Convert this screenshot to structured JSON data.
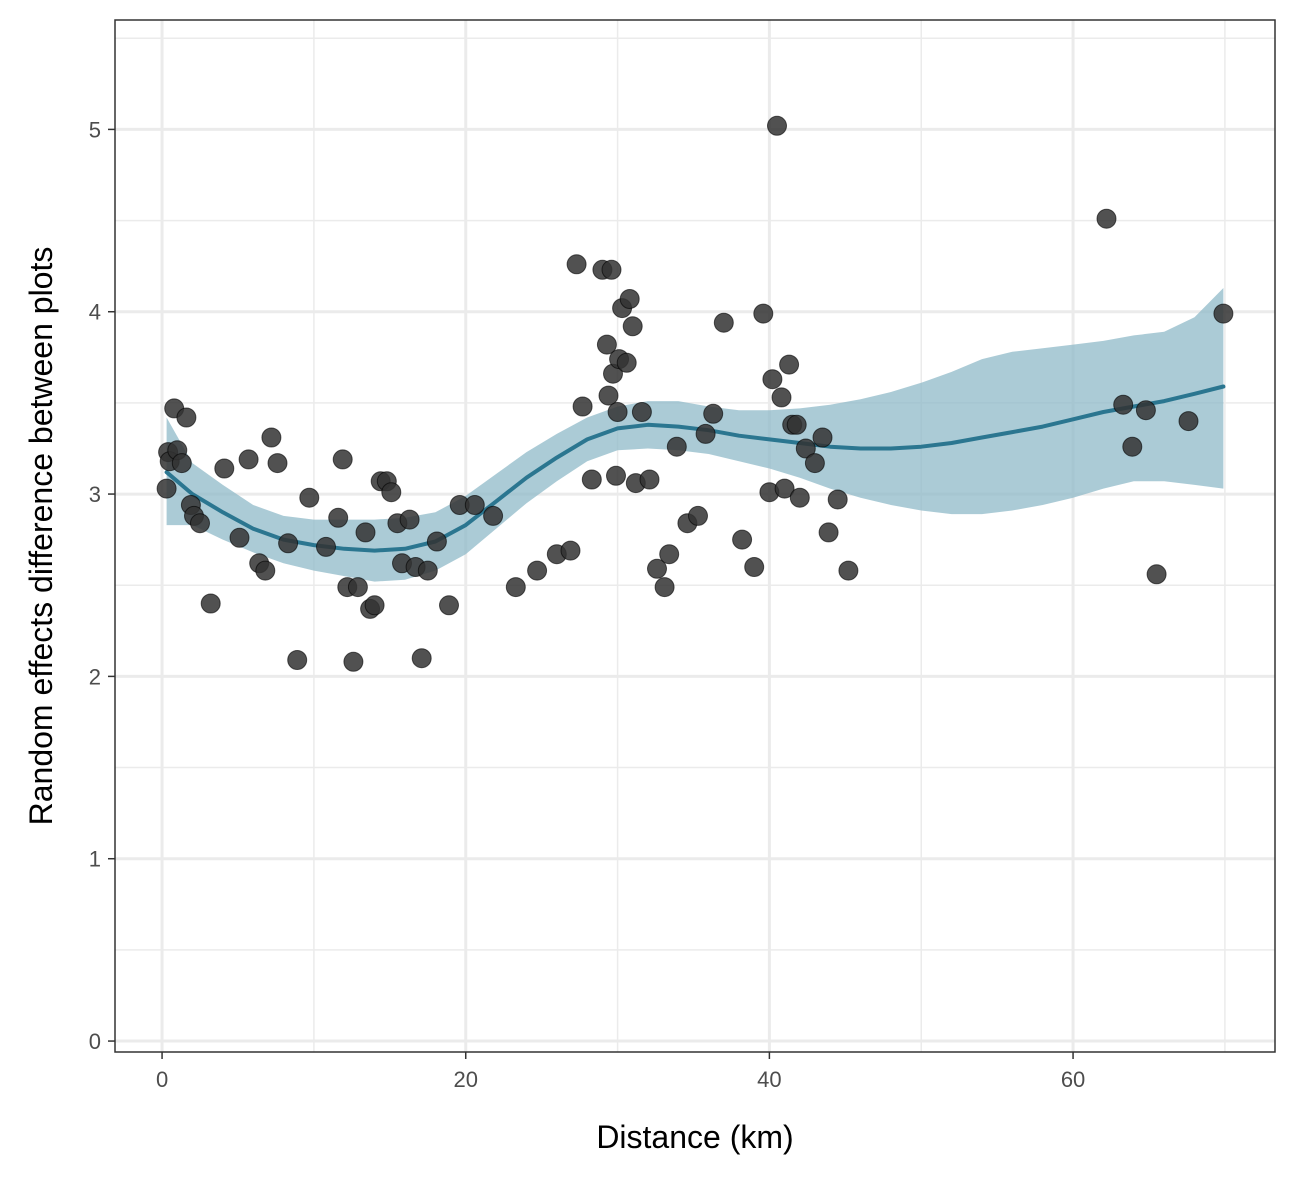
{
  "chart_data": {
    "type": "scatter",
    "xlabel": "Distance (km)",
    "ylabel": "Random effects difference between plots",
    "xlim": [
      -3.1,
      73.3
    ],
    "ylim": [
      -0.06,
      5.6
    ],
    "x_ticks": [
      0,
      20,
      40,
      60
    ],
    "x_tick_labels": [
      "0",
      "20",
      "40",
      "60"
    ],
    "y_ticks": [
      0,
      1,
      2,
      3,
      4,
      5
    ],
    "y_tick_labels": [
      "0",
      "1",
      "2",
      "3",
      "4",
      "5"
    ],
    "grid": true,
    "colors": {
      "points": "#333333",
      "smooth_line": "#2b7690",
      "ribbon": "#8fb9c8",
      "grid": "#ebebeb",
      "panel_border": "#333333"
    },
    "points": [
      [
        0.3,
        3.03
      ],
      [
        0.4,
        3.23
      ],
      [
        0.5,
        3.18
      ],
      [
        0.8,
        3.47
      ],
      [
        1.0,
        3.24
      ],
      [
        1.3,
        3.17
      ],
      [
        1.6,
        3.42
      ],
      [
        1.9,
        2.94
      ],
      [
        2.1,
        2.88
      ],
      [
        2.5,
        2.84
      ],
      [
        3.2,
        2.4
      ],
      [
        4.1,
        3.14
      ],
      [
        5.1,
        2.76
      ],
      [
        5.7,
        3.19
      ],
      [
        6.4,
        2.62
      ],
      [
        6.8,
        2.58
      ],
      [
        7.2,
        3.31
      ],
      [
        7.6,
        3.17
      ],
      [
        8.3,
        2.73
      ],
      [
        8.9,
        2.09
      ],
      [
        9.7,
        2.98
      ],
      [
        10.8,
        2.71
      ],
      [
        11.6,
        2.87
      ],
      [
        11.9,
        3.19
      ],
      [
        12.2,
        2.49
      ],
      [
        12.6,
        2.08
      ],
      [
        12.9,
        2.49
      ],
      [
        13.4,
        2.79
      ],
      [
        13.7,
        2.37
      ],
      [
        14.0,
        2.39
      ],
      [
        14.4,
        3.07
      ],
      [
        14.8,
        3.07
      ],
      [
        15.1,
        3.01
      ],
      [
        15.5,
        2.84
      ],
      [
        15.8,
        2.62
      ],
      [
        16.3,
        2.86
      ],
      [
        16.7,
        2.6
      ],
      [
        17.1,
        2.1
      ],
      [
        17.5,
        2.58
      ],
      [
        18.1,
        2.74
      ],
      [
        18.9,
        2.39
      ],
      [
        19.6,
        2.94
      ],
      [
        20.6,
        2.94
      ],
      [
        21.8,
        2.88
      ],
      [
        23.3,
        2.49
      ],
      [
        24.7,
        2.58
      ],
      [
        26.0,
        2.67
      ],
      [
        26.9,
        2.69
      ],
      [
        27.3,
        4.26
      ],
      [
        27.7,
        3.48
      ],
      [
        28.3,
        3.08
      ],
      [
        29.0,
        4.23
      ],
      [
        29.3,
        3.82
      ],
      [
        29.4,
        3.54
      ],
      [
        29.6,
        4.23
      ],
      [
        29.7,
        3.66
      ],
      [
        29.9,
        3.1
      ],
      [
        30.0,
        3.45
      ],
      [
        30.1,
        3.74
      ],
      [
        30.3,
        4.02
      ],
      [
        30.6,
        3.72
      ],
      [
        30.8,
        4.07
      ],
      [
        31.0,
        3.92
      ],
      [
        31.2,
        3.06
      ],
      [
        31.6,
        3.45
      ],
      [
        32.1,
        3.08
      ],
      [
        32.6,
        2.59
      ],
      [
        33.1,
        2.49
      ],
      [
        33.4,
        2.67
      ],
      [
        33.9,
        3.26
      ],
      [
        34.6,
        2.84
      ],
      [
        35.3,
        2.88
      ],
      [
        35.8,
        3.33
      ],
      [
        36.3,
        3.44
      ],
      [
        37.0,
        3.94
      ],
      [
        38.2,
        2.75
      ],
      [
        39.0,
        2.6
      ],
      [
        39.6,
        3.99
      ],
      [
        40.0,
        3.01
      ],
      [
        40.2,
        3.63
      ],
      [
        40.5,
        5.02
      ],
      [
        40.8,
        3.53
      ],
      [
        41.0,
        3.03
      ],
      [
        41.3,
        3.71
      ],
      [
        41.5,
        3.38
      ],
      [
        41.8,
        3.38
      ],
      [
        42.0,
        2.98
      ],
      [
        42.4,
        3.25
      ],
      [
        43.0,
        3.17
      ],
      [
        43.5,
        3.31
      ],
      [
        43.9,
        2.79
      ],
      [
        44.5,
        2.97
      ],
      [
        45.2,
        2.58
      ],
      [
        62.2,
        4.51
      ],
      [
        63.3,
        3.49
      ],
      [
        63.9,
        3.26
      ],
      [
        64.8,
        3.46
      ],
      [
        65.5,
        2.56
      ],
      [
        67.6,
        3.4
      ],
      [
        69.9,
        3.99
      ]
    ],
    "smooth": {
      "x": [
        0.3,
        2,
        4,
        6,
        8,
        10,
        12,
        14,
        16,
        18,
        20,
        22,
        24,
        26,
        28,
        30,
        32,
        34,
        36,
        38,
        40,
        42,
        44,
        46,
        48,
        50,
        52,
        54,
        56,
        58,
        60,
        62,
        64,
        66,
        68,
        69.9
      ],
      "y": [
        3.12,
        3.0,
        2.9,
        2.81,
        2.75,
        2.72,
        2.7,
        2.69,
        2.7,
        2.74,
        2.83,
        2.96,
        3.09,
        3.2,
        3.3,
        3.36,
        3.38,
        3.37,
        3.35,
        3.32,
        3.3,
        3.28,
        3.26,
        3.25,
        3.25,
        3.26,
        3.28,
        3.31,
        3.34,
        3.37,
        3.41,
        3.45,
        3.48,
        3.51,
        3.55,
        3.59
      ],
      "lower": [
        2.83,
        2.83,
        2.75,
        2.68,
        2.62,
        2.58,
        2.55,
        2.52,
        2.53,
        2.58,
        2.67,
        2.81,
        2.95,
        3.07,
        3.18,
        3.24,
        3.25,
        3.24,
        3.22,
        3.18,
        3.14,
        3.09,
        3.03,
        2.98,
        2.94,
        2.91,
        2.89,
        2.89,
        2.91,
        2.94,
        2.98,
        3.03,
        3.07,
        3.07,
        3.05,
        3.03
      ],
      "upper": [
        3.42,
        3.17,
        3.05,
        2.94,
        2.88,
        2.86,
        2.86,
        2.86,
        2.87,
        2.9,
        2.99,
        3.11,
        3.23,
        3.33,
        3.42,
        3.48,
        3.51,
        3.51,
        3.48,
        3.46,
        3.46,
        3.47,
        3.49,
        3.52,
        3.56,
        3.61,
        3.67,
        3.74,
        3.78,
        3.8,
        3.82,
        3.84,
        3.87,
        3.89,
        3.97,
        4.13
      ]
    }
  }
}
